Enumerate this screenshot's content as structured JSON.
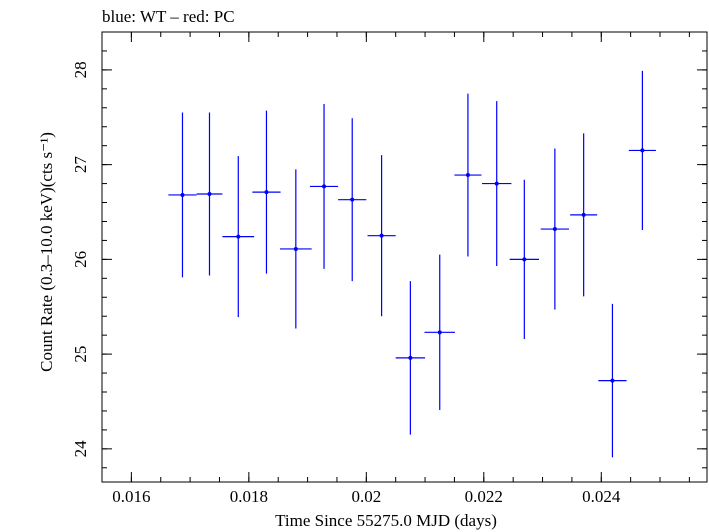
{
  "header_note": "blue: WT – red: PC",
  "chart_data": {
    "type": "scatter",
    "title": "",
    "xlabel": "Time Since 55275.0 MJD (days)",
    "ylabel": "Count Rate (0.3–10.0 keV)(cts s⁻¹)",
    "xlim": [
      0.0155,
      0.0258
    ],
    "ylim": [
      23.65,
      28.4
    ],
    "x_major_ticks": [
      0.016,
      0.018,
      0.02,
      0.022,
      0.024
    ],
    "x_tick_labels": [
      "0.016",
      "0.018",
      "0.02",
      "0.022",
      "0.024"
    ],
    "y_major_ticks": [
      24,
      25,
      26,
      27,
      28
    ],
    "y_tick_labels": [
      "24",
      "25",
      "26",
      "27",
      "28"
    ],
    "grid": false,
    "series": [
      {
        "color": "#0000ff",
        "points": [
          {
            "x": 0.01687,
            "xerr": 0.00024,
            "y": 26.68,
            "yerr": 0.87
          },
          {
            "x": 0.01733,
            "xerr": 0.00022,
            "y": 26.69,
            "yerr": 0.86
          },
          {
            "x": 0.01782,
            "xerr": 0.00027,
            "y": 26.24,
            "yerr": 0.85
          },
          {
            "x": 0.0183,
            "xerr": 0.00024,
            "y": 26.71,
            "yerr": 0.86
          },
          {
            "x": 0.0188,
            "xerr": 0.00027,
            "y": 26.11,
            "yerr": 0.84
          },
          {
            "x": 0.01928,
            "xerr": 0.00024,
            "y": 26.77,
            "yerr": 0.87
          },
          {
            "x": 0.01976,
            "xerr": 0.00024,
            "y": 26.63,
            "yerr": 0.86
          },
          {
            "x": 0.02026,
            "xerr": 0.00024,
            "y": 26.25,
            "yerr": 0.85
          },
          {
            "x": 0.02075,
            "xerr": 0.00025,
            "y": 24.96,
            "yerr": 0.81
          },
          {
            "x": 0.02125,
            "xerr": 0.00026,
            "y": 25.23,
            "yerr": 0.82
          },
          {
            "x": 0.02173,
            "xerr": 0.00023,
            "y": 26.89,
            "yerr": 0.86
          },
          {
            "x": 0.02222,
            "xerr": 0.00025,
            "y": 26.8,
            "yerr": 0.87
          },
          {
            "x": 0.02269,
            "xerr": 0.00025,
            "y": 26.0,
            "yerr": 0.84
          },
          {
            "x": 0.02321,
            "xerr": 0.00024,
            "y": 26.32,
            "yerr": 0.85
          },
          {
            "x": 0.0237,
            "xerr": 0.00023,
            "y": 26.47,
            "yerr": 0.86
          },
          {
            "x": 0.02419,
            "xerr": 0.00024,
            "y": 24.72,
            "yerr": 0.81
          },
          {
            "x": 0.0247,
            "xerr": 0.00023,
            "y": 27.15,
            "yerr": 0.84
          }
        ]
      }
    ]
  }
}
